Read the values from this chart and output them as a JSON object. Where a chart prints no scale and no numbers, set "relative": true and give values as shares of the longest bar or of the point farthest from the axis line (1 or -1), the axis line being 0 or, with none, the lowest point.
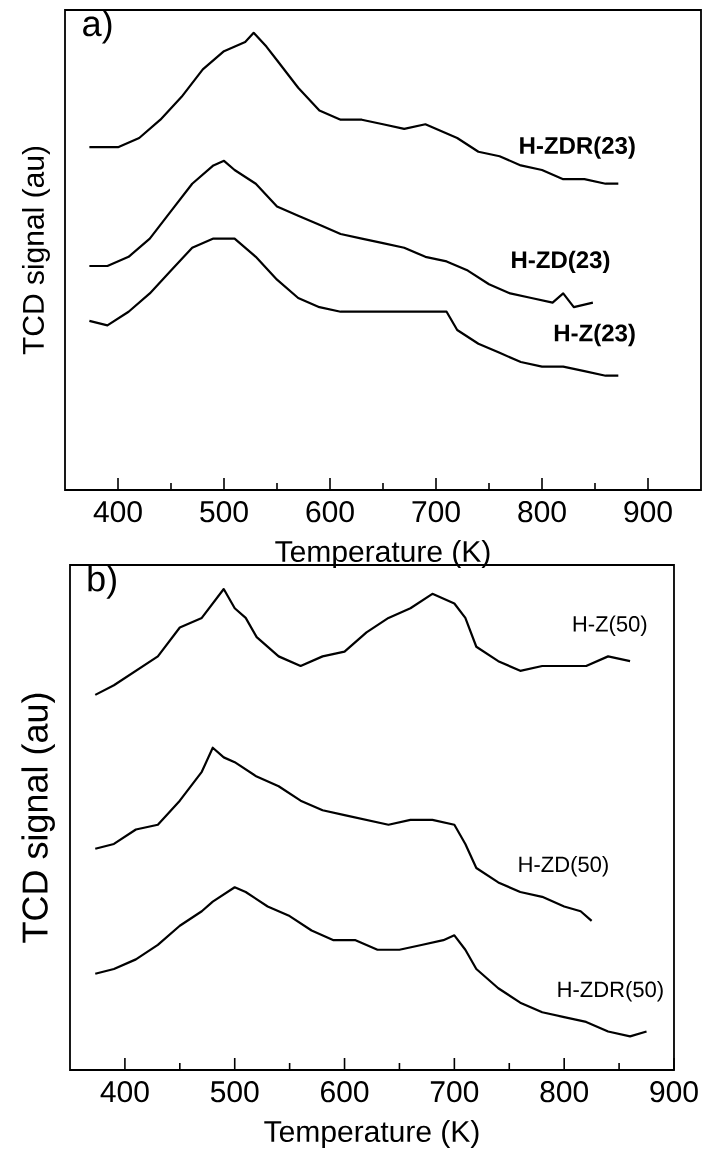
{
  "chart_data": [
    {
      "type": "line",
      "title": "a)",
      "xlabel": "Temperature (K)",
      "ylabel": "TCD signal (au)",
      "relative": true,
      "tick_labels": "x",
      "xlim": [
        350,
        950
      ],
      "xticks": [
        400,
        500,
        600,
        700,
        800,
        900
      ],
      "series": [
        {
          "name": "H-ZDR(23)",
          "color": "#000000",
          "x": [
            373,
            400,
            420,
            440,
            460,
            480,
            500,
            520,
            528,
            540,
            550,
            570,
            590,
            610,
            630,
            650,
            670,
            690,
            700,
            720,
            740,
            760,
            780,
            800,
            820,
            840,
            860,
            872
          ],
          "values": [
            0.75,
            0.75,
            0.77,
            0.81,
            0.86,
            0.92,
            0.96,
            0.98,
            1.0,
            0.97,
            0.94,
            0.88,
            0.83,
            0.81,
            0.81,
            0.8,
            0.79,
            0.8,
            0.79,
            0.77,
            0.74,
            0.73,
            0.71,
            0.7,
            0.68,
            0.68,
            0.67,
            0.67
          ]
        },
        {
          "name": "H-ZD(23)",
          "color": "#000000",
          "x": [
            373,
            390,
            410,
            430,
            450,
            470,
            490,
            500,
            510,
            530,
            550,
            570,
            590,
            610,
            630,
            650,
            670,
            690,
            710,
            730,
            750,
            770,
            790,
            810,
            820,
            830,
            848
          ],
          "values": [
            0.49,
            0.49,
            0.51,
            0.55,
            0.61,
            0.67,
            0.71,
            0.72,
            0.7,
            0.67,
            0.62,
            0.6,
            0.58,
            0.56,
            0.55,
            0.54,
            0.53,
            0.51,
            0.5,
            0.48,
            0.45,
            0.43,
            0.42,
            0.41,
            0.43,
            0.4,
            0.41
          ]
        },
        {
          "name": "H-Z(23)",
          "color": "#000000",
          "x": [
            373,
            390,
            410,
            430,
            450,
            470,
            490,
            500,
            510,
            530,
            550,
            570,
            590,
            610,
            630,
            650,
            670,
            690,
            710,
            720,
            740,
            760,
            780,
            800,
            820,
            840,
            860,
            872
          ],
          "values": [
            0.37,
            0.36,
            0.39,
            0.43,
            0.48,
            0.53,
            0.55,
            0.55,
            0.55,
            0.51,
            0.46,
            0.42,
            0.4,
            0.39,
            0.39,
            0.39,
            0.39,
            0.39,
            0.39,
            0.35,
            0.32,
            0.3,
            0.28,
            0.27,
            0.27,
            0.26,
            0.25,
            0.25
          ]
        }
      ]
    },
    {
      "type": "line",
      "title": "b)",
      "xlabel": "Temperature (K)",
      "ylabel": "TCD signal (au)",
      "relative": true,
      "tick_labels": "x",
      "xlim": [
        350,
        900
      ],
      "xticks": [
        400,
        500,
        600,
        700,
        800,
        900
      ],
      "series": [
        {
          "name": "H-Z(50)",
          "color": "#000000",
          "x": [
            373,
            390,
            410,
            430,
            450,
            470,
            490,
            500,
            510,
            520,
            540,
            560,
            580,
            600,
            620,
            640,
            660,
            680,
            700,
            710,
            720,
            740,
            760,
            780,
            800,
            820,
            840,
            860
          ],
          "values": [
            0.78,
            0.8,
            0.83,
            0.86,
            0.92,
            0.94,
            1.0,
            0.96,
            0.94,
            0.9,
            0.86,
            0.84,
            0.86,
            0.87,
            0.91,
            0.94,
            0.96,
            0.99,
            0.97,
            0.94,
            0.88,
            0.85,
            0.83,
            0.84,
            0.84,
            0.84,
            0.86,
            0.85
          ]
        },
        {
          "name": "H-ZD(50)",
          "color": "#000000",
          "x": [
            373,
            390,
            410,
            430,
            450,
            470,
            480,
            490,
            500,
            520,
            540,
            560,
            580,
            600,
            620,
            640,
            660,
            680,
            700,
            710,
            720,
            740,
            760,
            780,
            800,
            815,
            825
          ],
          "values": [
            0.46,
            0.47,
            0.5,
            0.51,
            0.56,
            0.62,
            0.67,
            0.65,
            0.64,
            0.61,
            0.59,
            0.56,
            0.54,
            0.53,
            0.52,
            0.51,
            0.52,
            0.52,
            0.51,
            0.47,
            0.42,
            0.39,
            0.37,
            0.36,
            0.34,
            0.33,
            0.31
          ]
        },
        {
          "name": "H-ZDR(50)",
          "color": "#000000",
          "x": [
            373,
            390,
            410,
            430,
            450,
            470,
            480,
            500,
            510,
            530,
            550,
            570,
            590,
            610,
            630,
            650,
            670,
            690,
            700,
            710,
            720,
            740,
            760,
            780,
            800,
            820,
            840,
            860,
            875
          ],
          "values": [
            0.2,
            0.21,
            0.23,
            0.26,
            0.3,
            0.33,
            0.35,
            0.38,
            0.37,
            0.34,
            0.32,
            0.29,
            0.27,
            0.27,
            0.25,
            0.25,
            0.26,
            0.27,
            0.28,
            0.25,
            0.21,
            0.17,
            0.14,
            0.12,
            0.11,
            0.1,
            0.08,
            0.07,
            0.08
          ]
        }
      ]
    }
  ]
}
